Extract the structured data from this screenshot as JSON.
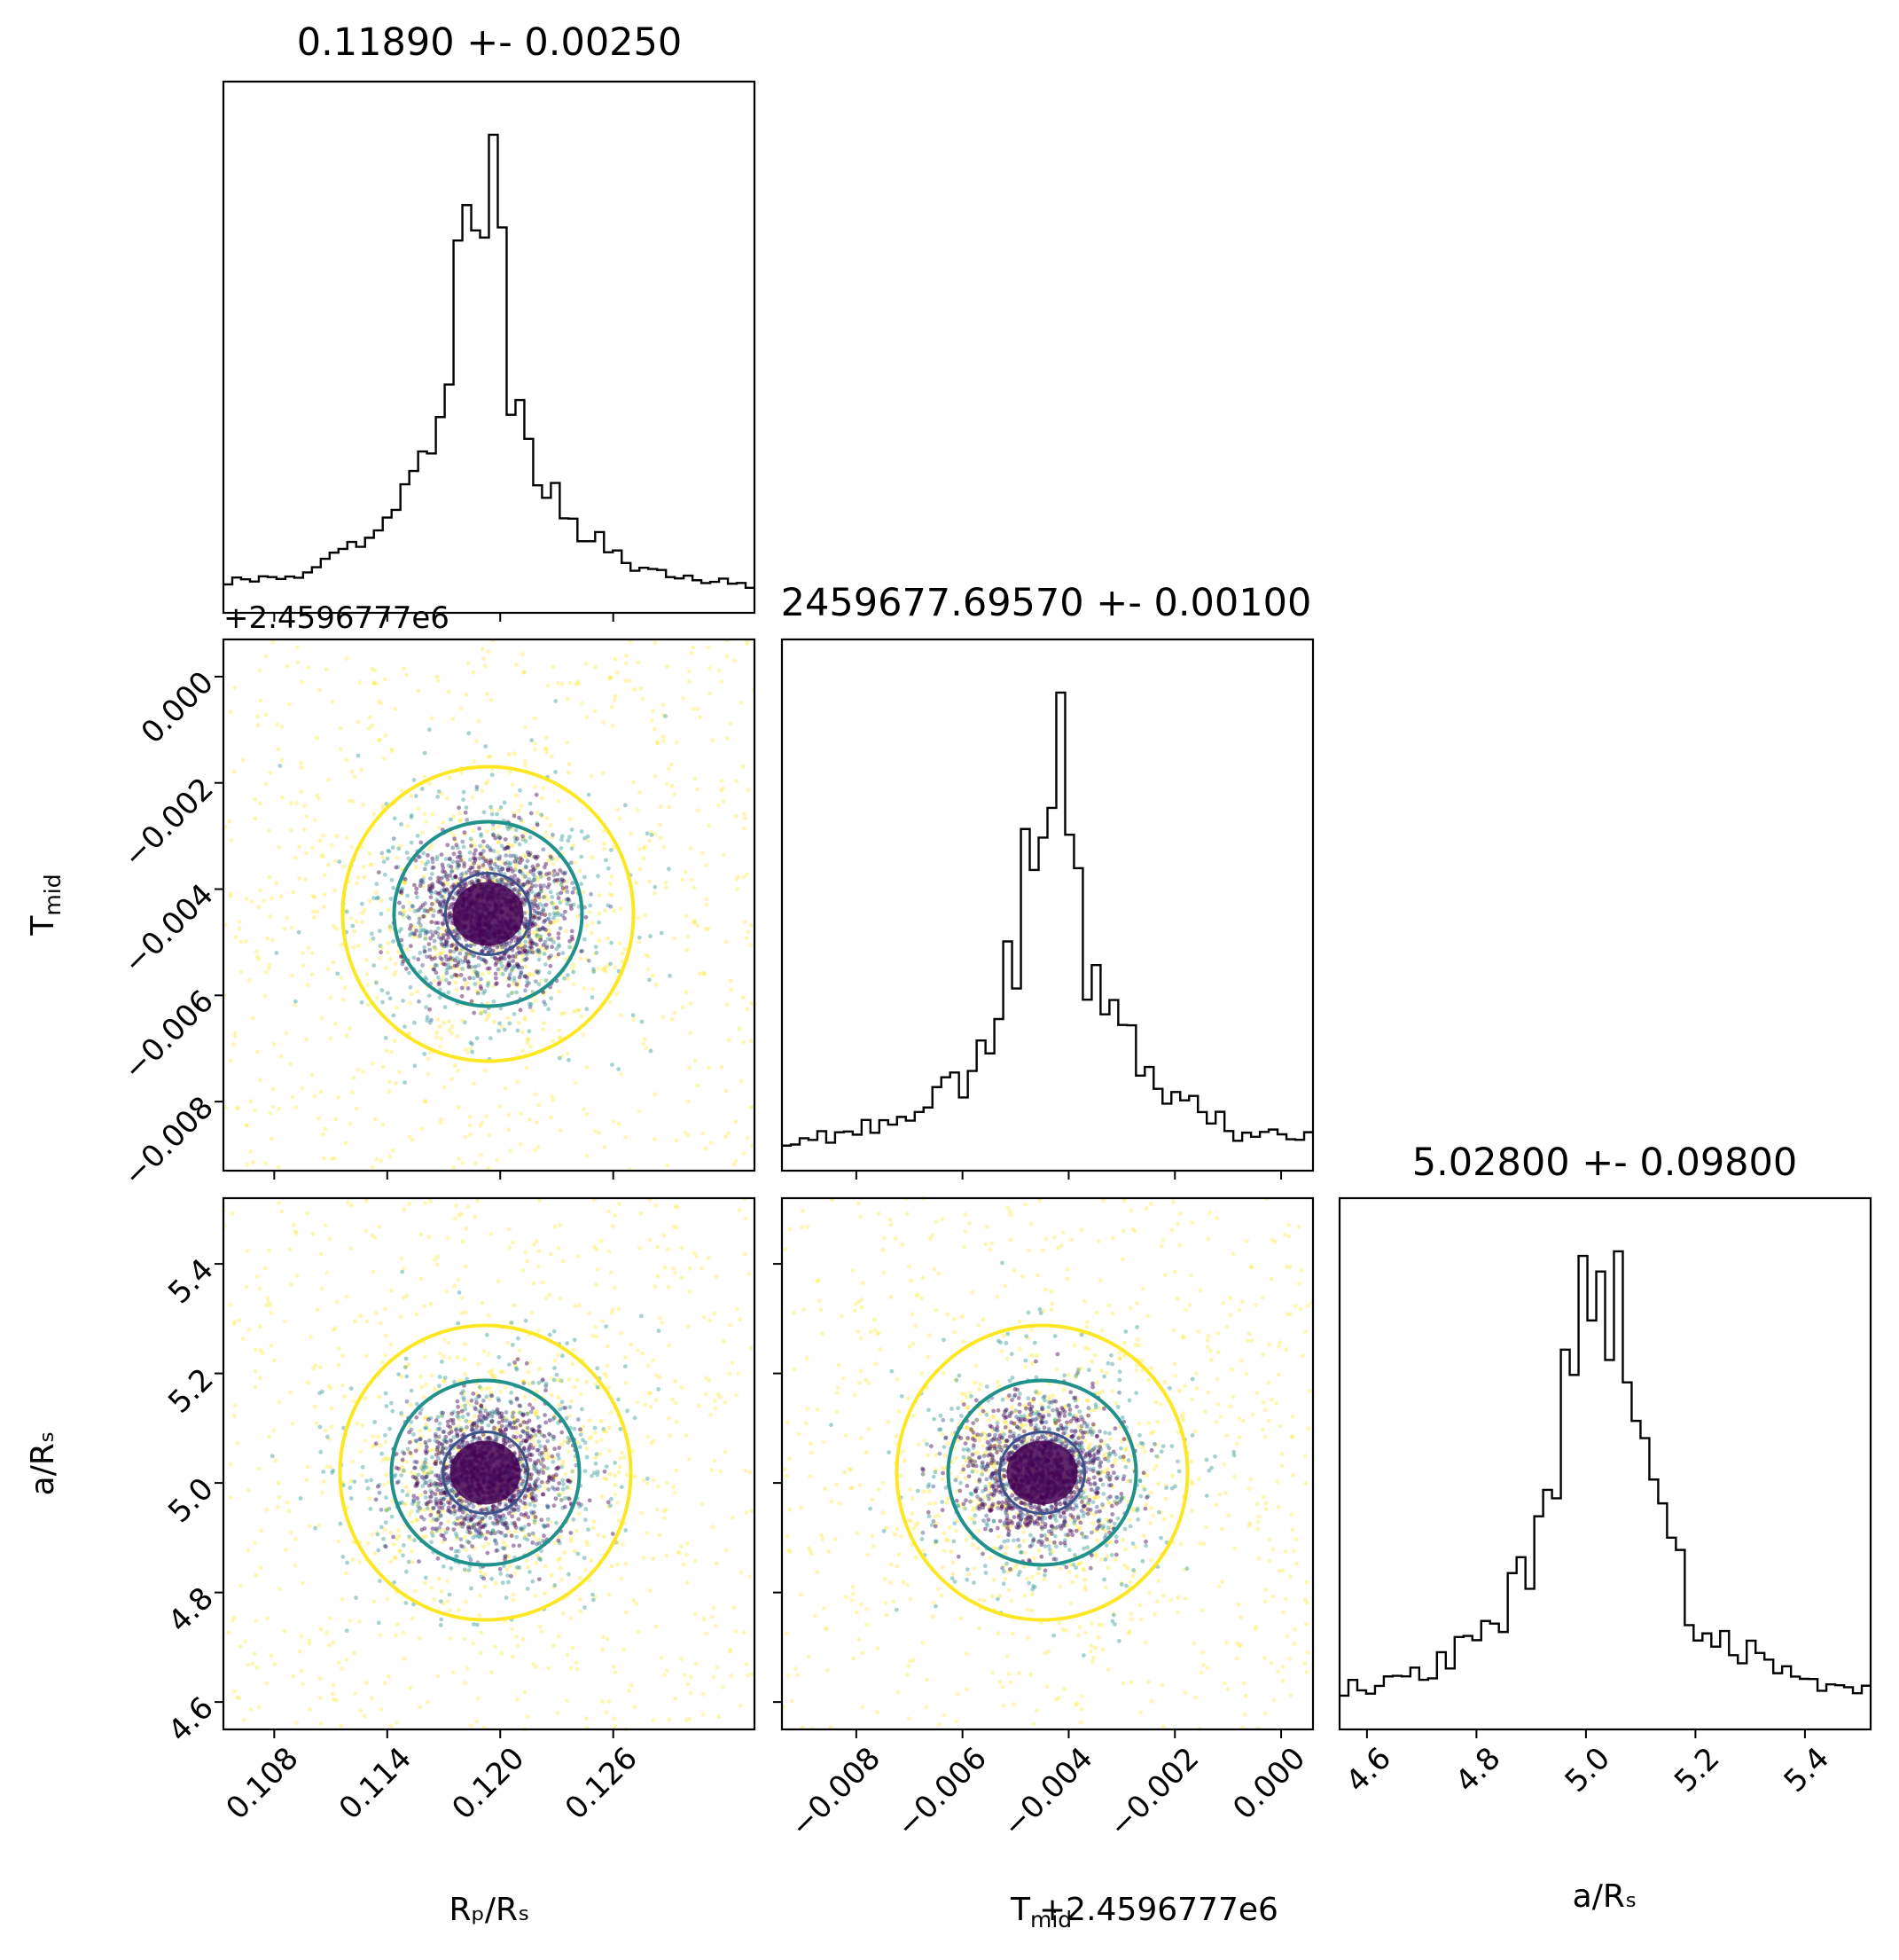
{
  "colors": {
    "outer_contour": "#fde725",
    "middle_contour": "#21918c",
    "inner_contour": "#3b528b",
    "core": "#440154",
    "histogram": "#000000"
  },
  "labels": {
    "rp": "Rₚ/Rₛ",
    "tmid": "T",
    "tmid_sub": "mid",
    "ars": "a/Rₛ",
    "tmid_offset": "+2.4596777e6"
  },
  "chart_data": [
    {
      "type": "histogram",
      "panel": "Rp/Rs",
      "title": "0.11890 +- 0.00250",
      "xlim": [
        0.1053,
        0.1335
      ],
      "xticks": [
        0.108,
        0.114,
        0.12,
        0.126
      ],
      "xtick_labels": [
        "0.108",
        "0.114",
        "0.120",
        "0.126"
      ],
      "peak": 0.119,
      "width": 0.0025
    },
    {
      "type": "histogram",
      "panel": "Tmid",
      "title": "2459677.69570 +- 0.00100",
      "xlim": [
        -0.0094,
        0.0006
      ],
      "xticks": [
        -0.008,
        -0.006,
        -0.004,
        -0.002,
        0.0
      ],
      "xtick_labels": [
        "−0.008",
        "−0.006",
        "−0.004",
        "−0.002",
        "0.000"
      ],
      "x_offset": "+2.4596777e6",
      "xlabel": "T_mid",
      "peak": -0.0043,
      "width": 0.001
    },
    {
      "type": "histogram",
      "panel": "a/Rs",
      "title": "5.02800 +- 0.09800",
      "xlim": [
        4.55,
        5.52
      ],
      "xticks": [
        4.6,
        4.8,
        5.0,
        5.2,
        5.4
      ],
      "xtick_labels": [
        "4.6",
        "4.8",
        "5.0",
        "5.2",
        "5.4"
      ],
      "xlabel": "a/Rs",
      "peak": 5.028,
      "width": 0.098
    },
    {
      "type": "scatter",
      "panel": "Rp/Rs vs Tmid",
      "x": "Rp/Rs",
      "y": "Tmid",
      "xlim": [
        0.1053,
        0.1335
      ],
      "ylim": [
        -0.0093,
        0.0007
      ],
      "yticks": [
        0.0,
        -0.002,
        -0.004,
        -0.006,
        -0.008
      ],
      "ytick_labels": [
        "0.000",
        "−0.002",
        "−0.004",
        "−0.006",
        "−0.008"
      ],
      "y_offset": "+2.4596777e6",
      "center": [
        0.1193,
        -0.0044
      ]
    },
    {
      "type": "scatter",
      "panel": "Rp/Rs vs a/Rs",
      "x": "Rp/Rs",
      "y": "a/Rs",
      "xlim": [
        0.1053,
        0.1335
      ],
      "ylim": [
        4.55,
        5.52
      ],
      "yticks": [
        5.4,
        5.2,
        5.0,
        4.8,
        4.6
      ],
      "ytick_labels": [
        "5.4",
        "5.2",
        "5.0",
        "4.8",
        "4.6"
      ],
      "xlabel": "Rp/Rs",
      "ylabel": "a/Rs",
      "center": [
        0.1193,
        5.03
      ]
    },
    {
      "type": "scatter",
      "panel": "Tmid vs a/Rs",
      "x": "Tmid",
      "y": "a/Rs",
      "xlim": [
        -0.0094,
        0.0006
      ],
      "ylim": [
        4.55,
        5.52
      ],
      "center": [
        -0.0045,
        5.035
      ]
    }
  ]
}
